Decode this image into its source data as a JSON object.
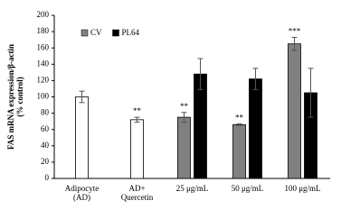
{
  "chart_data": {
    "type": "bar",
    "y_label": [
      "FAS mRNA expression/β-actin",
      "(% control)"
    ],
    "categories": [
      [
        "Adipocyte",
        "(AD)"
      ],
      [
        "AD+",
        "Quercetin"
      ],
      [
        "25 μg/mL"
      ],
      [
        "50 μg/mL"
      ],
      [
        "100 μg/mL"
      ]
    ],
    "series": [
      {
        "color": "#ffffff",
        "values": [
          100,
          72,
          null,
          null,
          null
        ],
        "errors": [
          7,
          3,
          null,
          null,
          null
        ],
        "labels": [
          null,
          "**",
          null,
          null,
          null
        ]
      },
      {
        "name": "CV",
        "color": "#808080",
        "values": [
          null,
          null,
          75,
          66,
          165
        ],
        "errors": [
          null,
          null,
          6,
          1,
          8
        ],
        "labels": [
          null,
          null,
          "**",
          "**",
          "***"
        ]
      },
      {
        "name": "PL64",
        "color": "#000000",
        "values": [
          null,
          null,
          128,
          122,
          105
        ],
        "errors": [
          null,
          null,
          19,
          13,
          30
        ],
        "labels": [
          null,
          null,
          null,
          null,
          null
        ]
      }
    ],
    "ylim": [
      0,
      200
    ],
    "yticks": [
      0,
      20,
      40,
      60,
      80,
      100,
      120,
      140,
      160,
      180,
      200
    ],
    "grid": false,
    "legend": "top-left"
  }
}
